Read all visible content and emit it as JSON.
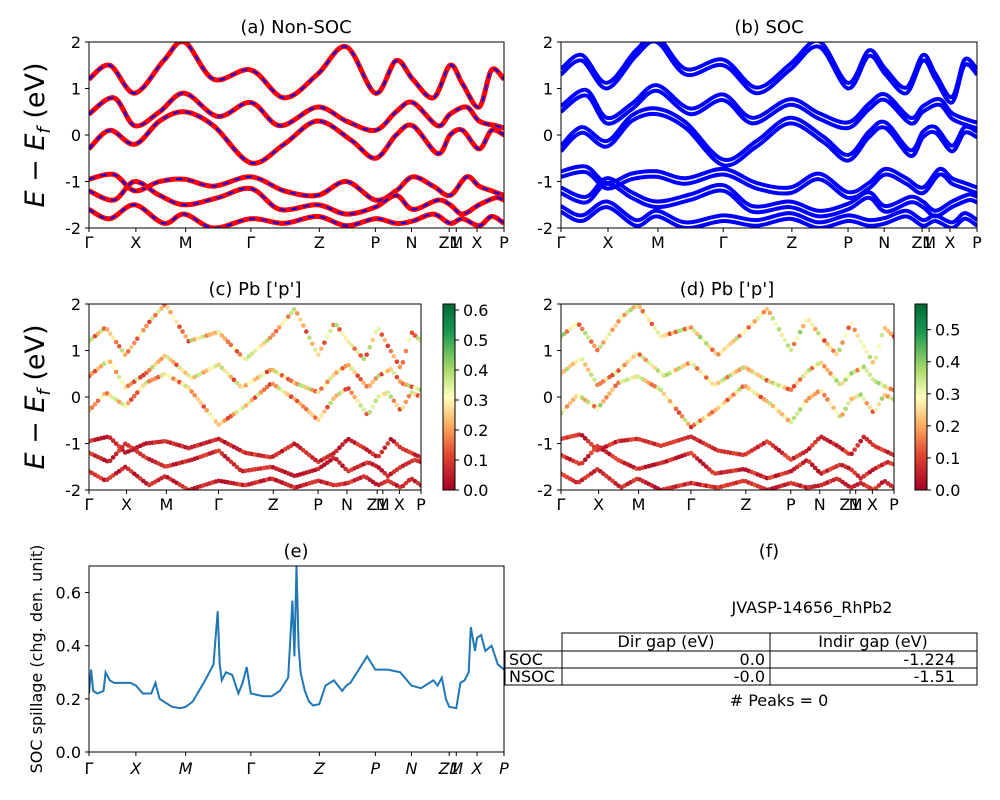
{
  "k_labels": [
    "Γ",
    "X",
    "M",
    "Γ",
    "Z",
    "P",
    "N",
    "Z1",
    "M",
    "X",
    "P"
  ],
  "k_positions": [
    0.0,
    0.113,
    0.233,
    0.39,
    0.555,
    0.69,
    0.777,
    0.868,
    0.885,
    0.935,
    1.0
  ],
  "energy_axis": {
    "ylim": [
      -2,
      2
    ],
    "ticks": [
      -2,
      -1,
      0,
      1,
      2
    ],
    "ylabel_left": "E − E",
    "ylabel_sub": "f",
    "ylabel_right": " (eV)"
  },
  "colors": {
    "nsoc_solid": "#ff0000",
    "nsoc_dash": "#0000ff",
    "soc": "#0000ff",
    "spillage": "#1f77b4"
  },
  "chart_data": [
    {
      "panel": "a",
      "type": "line",
      "title": "(a) Non-SOC",
      "ylim": [
        -2,
        2
      ],
      "series": [
        {
          "x": [
            0,
            0.05,
            0.11,
            0.18,
            0.23,
            0.3,
            0.39,
            0.47,
            0.55,
            0.62,
            0.69,
            0.74,
            0.78,
            0.83,
            0.87,
            0.9,
            0.94,
            0.97,
            1.0
          ],
          "y": [
            1.2,
            1.5,
            0.9,
            1.6,
            2.0,
            1.2,
            1.4,
            0.8,
            1.3,
            1.9,
            0.9,
            1.6,
            1.2,
            0.8,
            1.5,
            1.1,
            0.6,
            1.4,
            1.2
          ]
        },
        {
          "x": [
            0,
            0.06,
            0.11,
            0.17,
            0.23,
            0.31,
            0.39,
            0.46,
            0.55,
            0.62,
            0.69,
            0.74,
            0.78,
            0.84,
            0.87,
            0.91,
            0.94,
            0.98,
            1.0
          ],
          "y": [
            0.45,
            0.8,
            0.2,
            0.5,
            0.9,
            0.4,
            0.7,
            0.2,
            0.6,
            0.3,
            0.1,
            0.5,
            0.7,
            0.2,
            0.45,
            0.6,
            0.3,
            0.2,
            0.15
          ]
        },
        {
          "x": [
            0,
            0.05,
            0.11,
            0.17,
            0.23,
            0.3,
            0.39,
            0.47,
            0.55,
            0.63,
            0.69,
            0.74,
            0.78,
            0.84,
            0.87,
            0.9,
            0.94,
            0.97,
            1.0
          ],
          "y": [
            -0.3,
            0.1,
            -0.2,
            0.3,
            0.5,
            0.2,
            -0.6,
            -0.2,
            0.3,
            -0.1,
            -0.5,
            0.0,
            0.2,
            -0.4,
            0.0,
            0.1,
            -0.3,
            0.1,
            0.0
          ]
        },
        {
          "x": [
            0,
            0.06,
            0.11,
            0.17,
            0.23,
            0.3,
            0.39,
            0.47,
            0.55,
            0.62,
            0.69,
            0.74,
            0.78,
            0.83,
            0.87,
            0.91,
            0.94,
            0.97,
            1.0
          ],
          "y": [
            -0.95,
            -0.85,
            -1.2,
            -1.0,
            -0.95,
            -1.1,
            -0.9,
            -1.2,
            -1.3,
            -1.0,
            -1.4,
            -1.2,
            -0.9,
            -1.1,
            -1.3,
            -0.9,
            -1.1,
            -1.2,
            -1.3
          ]
        },
        {
          "x": [
            0,
            0.06,
            0.11,
            0.17,
            0.23,
            0.31,
            0.39,
            0.46,
            0.55,
            0.62,
            0.69,
            0.74,
            0.78,
            0.84,
            0.87,
            0.9,
            0.94,
            0.98,
            1.0
          ],
          "y": [
            -1.2,
            -1.4,
            -1.0,
            -1.3,
            -1.5,
            -1.35,
            -1.15,
            -1.6,
            -1.5,
            -1.7,
            -1.55,
            -1.3,
            -1.6,
            -1.4,
            -1.5,
            -1.7,
            -1.5,
            -1.35,
            -1.4
          ]
        },
        {
          "x": [
            0,
            0.05,
            0.11,
            0.18,
            0.23,
            0.3,
            0.39,
            0.47,
            0.55,
            0.62,
            0.69,
            0.74,
            0.78,
            0.83,
            0.87,
            0.9,
            0.94,
            0.97,
            1.0
          ],
          "y": [
            -1.6,
            -1.8,
            -1.5,
            -1.9,
            -1.7,
            -2.0,
            -1.8,
            -1.9,
            -1.75,
            -1.95,
            -1.8,
            -1.9,
            -1.85,
            -1.7,
            -1.9,
            -1.8,
            -1.95,
            -1.75,
            -1.9
          ]
        }
      ]
    },
    {
      "panel": "b",
      "type": "line",
      "title": "(b) SOC",
      "ylim": [
        -2,
        2
      ],
      "series": [
        {
          "x": [
            0,
            0.05,
            0.11,
            0.18,
            0.23,
            0.3,
            0.39,
            0.47,
            0.55,
            0.62,
            0.69,
            0.74,
            0.78,
            0.83,
            0.87,
            0.9,
            0.94,
            0.97,
            1.0
          ],
          "y": [
            1.3,
            1.6,
            1.0,
            1.7,
            2.0,
            1.3,
            1.5,
            0.9,
            1.4,
            1.9,
            1.0,
            1.7,
            1.3,
            0.9,
            1.6,
            1.2,
            0.7,
            1.5,
            1.3
          ]
        },
        {
          "x": [
            0,
            0.06,
            0.11,
            0.17,
            0.23,
            0.31,
            0.39,
            0.46,
            0.55,
            0.62,
            0.69,
            0.74,
            0.78,
            0.84,
            0.87,
            0.91,
            0.94,
            0.98,
            1.0
          ],
          "y": [
            0.5,
            0.85,
            0.25,
            0.55,
            0.95,
            0.45,
            0.75,
            0.25,
            0.65,
            0.35,
            0.15,
            0.55,
            0.75,
            0.25,
            0.5,
            0.65,
            0.35,
            0.2,
            0.15
          ]
        },
        {
          "x": [
            0,
            0.05,
            0.11,
            0.17,
            0.23,
            0.3,
            0.39,
            0.47,
            0.55,
            0.63,
            0.69,
            0.74,
            0.78,
            0.84,
            0.87,
            0.9,
            0.94,
            0.97,
            1.0
          ],
          "y": [
            -0.35,
            0.05,
            -0.25,
            0.3,
            0.45,
            0.15,
            -0.65,
            -0.25,
            0.25,
            -0.15,
            -0.55,
            -0.05,
            0.15,
            -0.45,
            -0.05,
            0.05,
            -0.35,
            0.05,
            -0.05
          ]
        },
        {
          "x": [
            0,
            0.06,
            0.11,
            0.17,
            0.23,
            0.3,
            0.39,
            0.47,
            0.55,
            0.62,
            0.69,
            0.74,
            0.78,
            0.83,
            0.87,
            0.91,
            0.94,
            0.97,
            1.0
          ],
          "y": [
            -0.9,
            -0.8,
            -1.15,
            -0.95,
            -0.9,
            -1.05,
            -0.85,
            -1.15,
            -1.25,
            -0.95,
            -1.35,
            -1.15,
            -0.85,
            -1.05,
            -1.25,
            -0.85,
            -1.05,
            -1.15,
            -1.25
          ]
        },
        {
          "x": [
            0,
            0.06,
            0.11,
            0.17,
            0.23,
            0.31,
            0.39,
            0.46,
            0.55,
            0.62,
            0.69,
            0.74,
            0.78,
            0.84,
            0.87,
            0.9,
            0.94,
            0.98,
            1.0
          ],
          "y": [
            -1.25,
            -1.45,
            -1.05,
            -1.35,
            -1.55,
            -1.4,
            -1.2,
            -1.65,
            -1.55,
            -1.75,
            -1.6,
            -1.35,
            -1.65,
            -1.45,
            -1.55,
            -1.75,
            -1.55,
            -1.4,
            -1.45
          ]
        },
        {
          "x": [
            0,
            0.05,
            0.11,
            0.18,
            0.23,
            0.3,
            0.39,
            0.47,
            0.55,
            0.62,
            0.69,
            0.74,
            0.78,
            0.83,
            0.87,
            0.9,
            0.94,
            0.97,
            1.0
          ],
          "y": [
            -1.65,
            -1.85,
            -1.55,
            -1.95,
            -1.75,
            -2.0,
            -1.85,
            -1.95,
            -1.8,
            -2.0,
            -1.85,
            -1.95,
            -1.9,
            -1.75,
            -1.95,
            -1.85,
            -2.0,
            -1.8,
            -1.95
          ]
        }
      ]
    },
    {
      "panel": "c",
      "type": "scatter",
      "title": "(c)  Pb ['p']",
      "ylim": [
        -2,
        2
      ],
      "colorbar": {
        "min": 0.0,
        "max": 0.62,
        "ticks": [
          "0.0",
          "0.1",
          "0.2",
          "0.3",
          "0.4",
          "0.5",
          "0.6"
        ],
        "tick_values": [
          0,
          0.1,
          0.2,
          0.3,
          0.4,
          0.5,
          0.6
        ]
      }
    },
    {
      "panel": "d",
      "type": "scatter",
      "title": "(d) Pb ['p']",
      "ylim": [
        -2,
        2
      ],
      "colorbar": {
        "min": 0.0,
        "max": 0.58,
        "ticks": [
          "0.0",
          "0.1",
          "0.2",
          "0.3",
          "0.4",
          "0.5"
        ],
        "tick_values": [
          0,
          0.1,
          0.2,
          0.3,
          0.4,
          0.5
        ]
      }
    },
    {
      "panel": "e",
      "type": "line",
      "title": "(e)",
      "ylabel": "SOC spillage (chg. den. unit)",
      "ylim": [
        0.0,
        0.7
      ],
      "yticks": [
        0.0,
        0.2,
        0.4,
        0.6
      ],
      "x": [
        0,
        0.005,
        0.01,
        0.02,
        0.035,
        0.04,
        0.05,
        0.06,
        0.08,
        0.1,
        0.113,
        0.13,
        0.15,
        0.16,
        0.17,
        0.18,
        0.2,
        0.22,
        0.233,
        0.25,
        0.28,
        0.3,
        0.31,
        0.315,
        0.32,
        0.33,
        0.345,
        0.36,
        0.37,
        0.38,
        0.39,
        0.42,
        0.44,
        0.46,
        0.48,
        0.49,
        0.495,
        0.5,
        0.505,
        0.51,
        0.52,
        0.53,
        0.54,
        0.555,
        0.57,
        0.59,
        0.61,
        0.62,
        0.63,
        0.65,
        0.67,
        0.69,
        0.72,
        0.75,
        0.777,
        0.8,
        0.82,
        0.83,
        0.84,
        0.85,
        0.86,
        0.868,
        0.885,
        0.895,
        0.905,
        0.915,
        0.92,
        0.93,
        0.935,
        0.945,
        0.955,
        0.97,
        0.985,
        1.0
      ],
      "y": [
        0.22,
        0.31,
        0.23,
        0.22,
        0.23,
        0.3,
        0.27,
        0.26,
        0.26,
        0.26,
        0.25,
        0.22,
        0.22,
        0.26,
        0.2,
        0.19,
        0.17,
        0.165,
        0.17,
        0.19,
        0.27,
        0.33,
        0.53,
        0.33,
        0.27,
        0.3,
        0.29,
        0.22,
        0.26,
        0.32,
        0.22,
        0.21,
        0.21,
        0.23,
        0.28,
        0.57,
        0.36,
        0.7,
        0.4,
        0.3,
        0.23,
        0.19,
        0.175,
        0.18,
        0.25,
        0.27,
        0.23,
        0.25,
        0.26,
        0.31,
        0.36,
        0.31,
        0.31,
        0.3,
        0.25,
        0.24,
        0.26,
        0.27,
        0.25,
        0.28,
        0.2,
        0.17,
        0.165,
        0.26,
        0.27,
        0.3,
        0.47,
        0.38,
        0.43,
        0.44,
        0.38,
        0.4,
        0.33,
        0.31
      ]
    },
    {
      "panel": "f",
      "type": "table",
      "title": "(f)",
      "subtitle": "JVASP-14656_RhPb2",
      "columns": [
        "Dir gap (eV)",
        "Indir gap (eV)"
      ],
      "rows": [
        {
          "label": "SOC",
          "values": [
            "0.0",
            "-1.224"
          ]
        },
        {
          "label": "NSOC",
          "values": [
            "-0.0",
            "-1.51"
          ]
        }
      ],
      "footer": "# Peaks = 0"
    }
  ]
}
